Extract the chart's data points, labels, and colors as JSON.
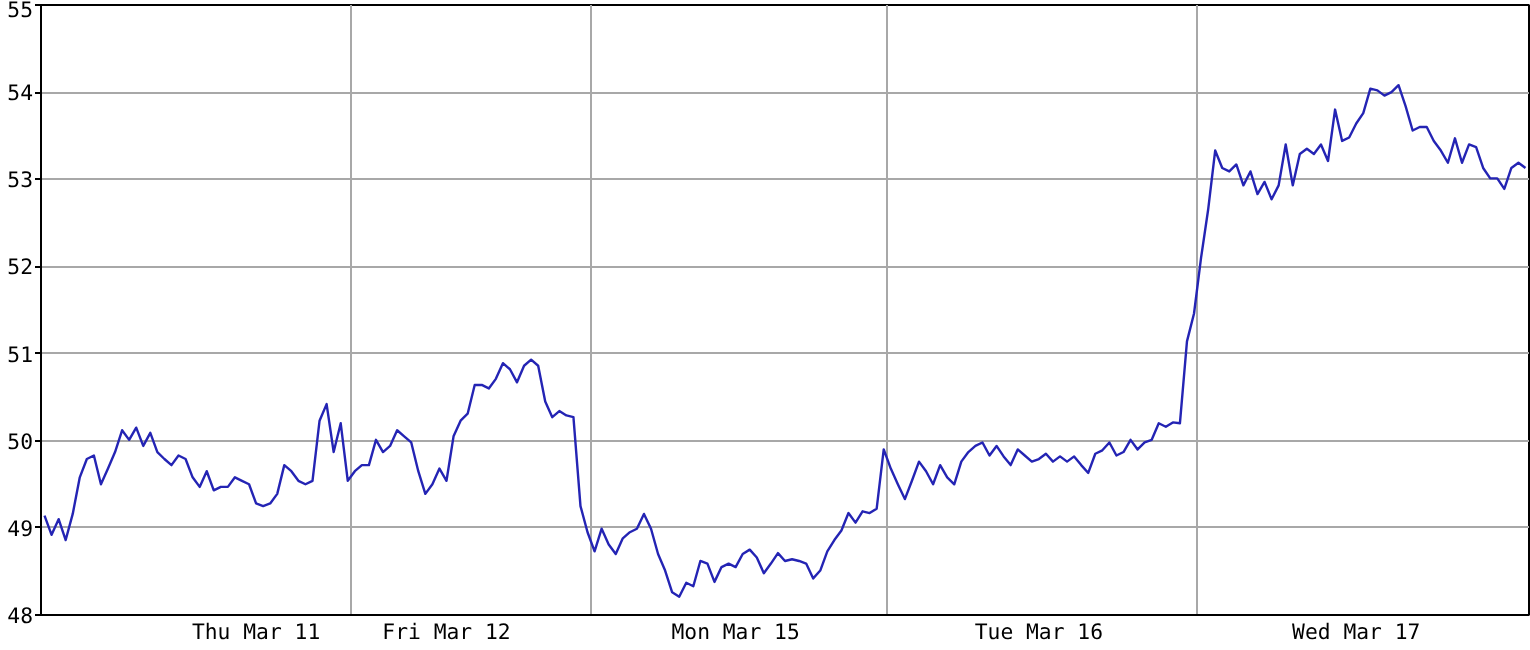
{
  "chart_data": {
    "type": "line",
    "ylim": [
      48,
      55
    ],
    "yticks": [
      48,
      49,
      50,
      51,
      52,
      53,
      54,
      55
    ],
    "categories": [
      null,
      null,
      null,
      null,
      null,
      null,
      null,
      null,
      null,
      null,
      null,
      null,
      null,
      null,
      null,
      null,
      null,
      null,
      null,
      null,
      null,
      null,
      null,
      null,
      null,
      null,
      null,
      null,
      null,
      null,
      "Thu Mar 11",
      null,
      null,
      null,
      null,
      null,
      null,
      null,
      null,
      null,
      null,
      null,
      null,
      null,
      null,
      null,
      null,
      null,
      null,
      null,
      null,
      null,
      null,
      null,
      null,
      null,
      null,
      "Fri Mar 12",
      null,
      null,
      null,
      null,
      null,
      null,
      null,
      null,
      null,
      null,
      null,
      null,
      null,
      null,
      null,
      null,
      null,
      null,
      null,
      null,
      null,
      null,
      null,
      null,
      null,
      null,
      null,
      null,
      null,
      null,
      null,
      null,
      null,
      null,
      null,
      null,
      null,
      null,
      null,
      null,
      "Mon Mar 15",
      null,
      null,
      null,
      null,
      null,
      null,
      null,
      null,
      null,
      null,
      null,
      null,
      null,
      null,
      null,
      null,
      null,
      null,
      null,
      null,
      null,
      null,
      null,
      null,
      null,
      null,
      null,
      null,
      null,
      null,
      null,
      null,
      null,
      null,
      null,
      null,
      null,
      null,
      null,
      null,
      null,
      null,
      "Tue Mar 16",
      null,
      null,
      null,
      null,
      null,
      null,
      null,
      null,
      null,
      null,
      null,
      null,
      null,
      null,
      null,
      null,
      null,
      null,
      null,
      null,
      null,
      null,
      null,
      null,
      null,
      null,
      null,
      null,
      null,
      null,
      null,
      null,
      null,
      null,
      null,
      null,
      null,
      null,
      null,
      null,
      null,
      null,
      null,
      null,
      "Wed Mar 17",
      null,
      null,
      null,
      null,
      null,
      null,
      null,
      null,
      null,
      null,
      null,
      null,
      null,
      null,
      null,
      null,
      null,
      null,
      null,
      null,
      null,
      null,
      null,
      null
    ],
    "grid": true,
    "marker": "none",
    "line_style": "solid",
    "series": [
      {
        "color": "#2424b4",
        "values": [
          49.14,
          48.92,
          49.1,
          48.86,
          49.16,
          49.58,
          49.79,
          49.83,
          49.5,
          49.68,
          49.87,
          50.12,
          50.01,
          50.15,
          49.94,
          50.09,
          49.87,
          49.79,
          49.72,
          49.83,
          49.79,
          49.58,
          49.47,
          49.65,
          49.43,
          49.47,
          49.47,
          49.58,
          49.54,
          49.5,
          49.28,
          49.25,
          49.28,
          49.39,
          49.72,
          49.65,
          49.54,
          49.5,
          49.54,
          50.23,
          50.42,
          49.87,
          50.2,
          49.54,
          49.65,
          49.72,
          49.72,
          50.01,
          49.87,
          49.94,
          50.12,
          50.05,
          49.98,
          49.65,
          49.39,
          49.5,
          49.68,
          49.54,
          50.05,
          50.23,
          50.31,
          50.64,
          50.64,
          50.6,
          50.71,
          50.89,
          50.82,
          50.67,
          50.86,
          50.93,
          50.86,
          50.45,
          50.27,
          50.34,
          50.29,
          50.27,
          49.25,
          48.95,
          48.73,
          48.99,
          48.81,
          48.7,
          48.88,
          48.95,
          48.99,
          49.16,
          48.99,
          48.7,
          48.51,
          48.26,
          48.21,
          48.37,
          48.33,
          48.62,
          48.59,
          48.38,
          48.55,
          48.59,
          48.55,
          48.7,
          48.75,
          48.66,
          48.48,
          48.59,
          48.71,
          48.62,
          48.64,
          48.62,
          48.59,
          48.42,
          48.51,
          48.73,
          48.86,
          48.97,
          49.17,
          49.06,
          49.19,
          49.17,
          49.22,
          49.9,
          49.68,
          49.5,
          49.33,
          49.54,
          49.76,
          49.65,
          49.5,
          49.72,
          49.58,
          49.5,
          49.76,
          49.87,
          49.94,
          49.98,
          49.83,
          49.94,
          49.82,
          49.72,
          49.9,
          49.83,
          49.76,
          49.79,
          49.85,
          49.76,
          49.82,
          49.76,
          49.82,
          49.72,
          49.63,
          49.85,
          49.89,
          49.98,
          49.83,
          49.87,
          50.01,
          49.9,
          49.98,
          50.01,
          50.2,
          50.16,
          50.21,
          50.2,
          51.14,
          51.46,
          52.1,
          52.65,
          53.33,
          53.13,
          53.09,
          53.17,
          52.93,
          53.09,
          52.83,
          52.97,
          52.77,
          52.93,
          53.4,
          52.93,
          53.29,
          53.35,
          53.29,
          53.4,
          53.21,
          53.8,
          53.44,
          53.48,
          53.64,
          53.76,
          54.04,
          54.02,
          53.96,
          54.0,
          54.08,
          53.84,
          53.56,
          53.6,
          53.6,
          53.44,
          53.33,
          53.19,
          53.47,
          53.19,
          53.4,
          53.37,
          53.13,
          53.01,
          53.01,
          52.89,
          53.13,
          53.19,
          53.13
        ]
      }
    ]
  }
}
